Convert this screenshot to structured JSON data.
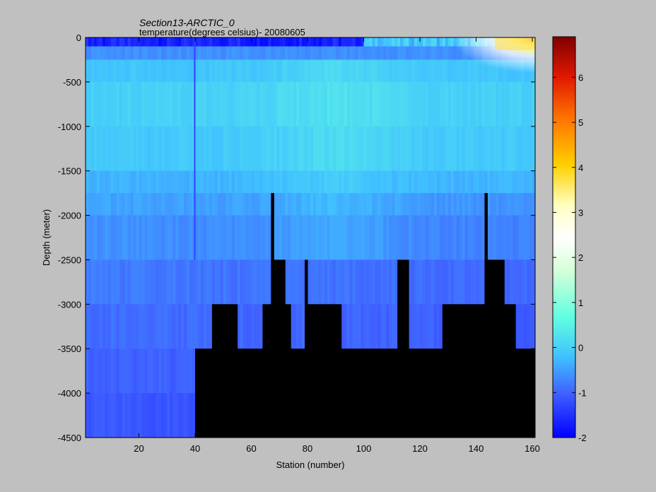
{
  "chart_data": {
    "type": "heatmap",
    "title": "Section13-ARCTIC_0",
    "subtitle": "temperature(degrees  celsius)- 20080605",
    "xlabel": "Station (number)",
    "ylabel": "Depth (meter)",
    "xlim": [
      1,
      161
    ],
    "ylim": [
      -4500,
      0
    ],
    "x_ticks": [
      20,
      40,
      60,
      80,
      100,
      120,
      140,
      160
    ],
    "y_ticks": [
      0,
      -500,
      -1000,
      -1500,
      -2000,
      -2500,
      -3000,
      -3500,
      -4000,
      -4500
    ],
    "colorbar": {
      "range": [
        -2,
        6.9
      ],
      "ticks": [
        -2,
        -1,
        0,
        1,
        2,
        3,
        4,
        5,
        6
      ],
      "colormap": "jet-with-white-center"
    },
    "grid": false,
    "no_data_color": "#000000",
    "temperature_profile_c": {
      "depths": [
        0,
        -250,
        -750,
        -1250,
        -1750,
        -2250,
        -2750,
        -3250,
        -3750,
        -4250
      ],
      "typical": [
        -1.6,
        -0.2,
        0.0,
        -0.1,
        -0.4,
        -0.6,
        -0.8,
        -0.9,
        -1.0,
        -1.1
      ],
      "warm_surface_east_max": 6.0
    },
    "seafloor": [
      {
        "x": [
          1,
          40
        ],
        "depth": -4500
      },
      {
        "x": [
          40,
          46
        ],
        "depth": -3500
      },
      {
        "x": [
          46,
          55
        ],
        "depth": -3000
      },
      {
        "x": [
          55,
          64
        ],
        "depth": -3500
      },
      {
        "x": [
          64,
          67
        ],
        "depth": -3000
      },
      {
        "x": [
          67,
          68
        ],
        "depth": -1750
      },
      {
        "x": [
          68,
          72
        ],
        "depth": -2500
      },
      {
        "x": [
          72,
          74
        ],
        "depth": -3000
      },
      {
        "x": [
          74,
          79
        ],
        "depth": -3500
      },
      {
        "x": [
          79,
          80
        ],
        "depth": -2500
      },
      {
        "x": [
          80,
          92
        ],
        "depth": -3000
      },
      {
        "x": [
          92,
          112
        ],
        "depth": -3500
      },
      {
        "x": [
          112,
          116
        ],
        "depth": -2500
      },
      {
        "x": [
          116,
          128
        ],
        "depth": -3500
      },
      {
        "x": [
          128,
          143
        ],
        "depth": -3000
      },
      {
        "x": [
          143,
          144
        ],
        "depth": -1750
      },
      {
        "x": [
          144,
          150
        ],
        "depth": -2500
      },
      {
        "x": [
          150,
          154
        ],
        "depth": -3000
      },
      {
        "x": [
          154,
          161
        ],
        "depth": -3500
      }
    ]
  }
}
